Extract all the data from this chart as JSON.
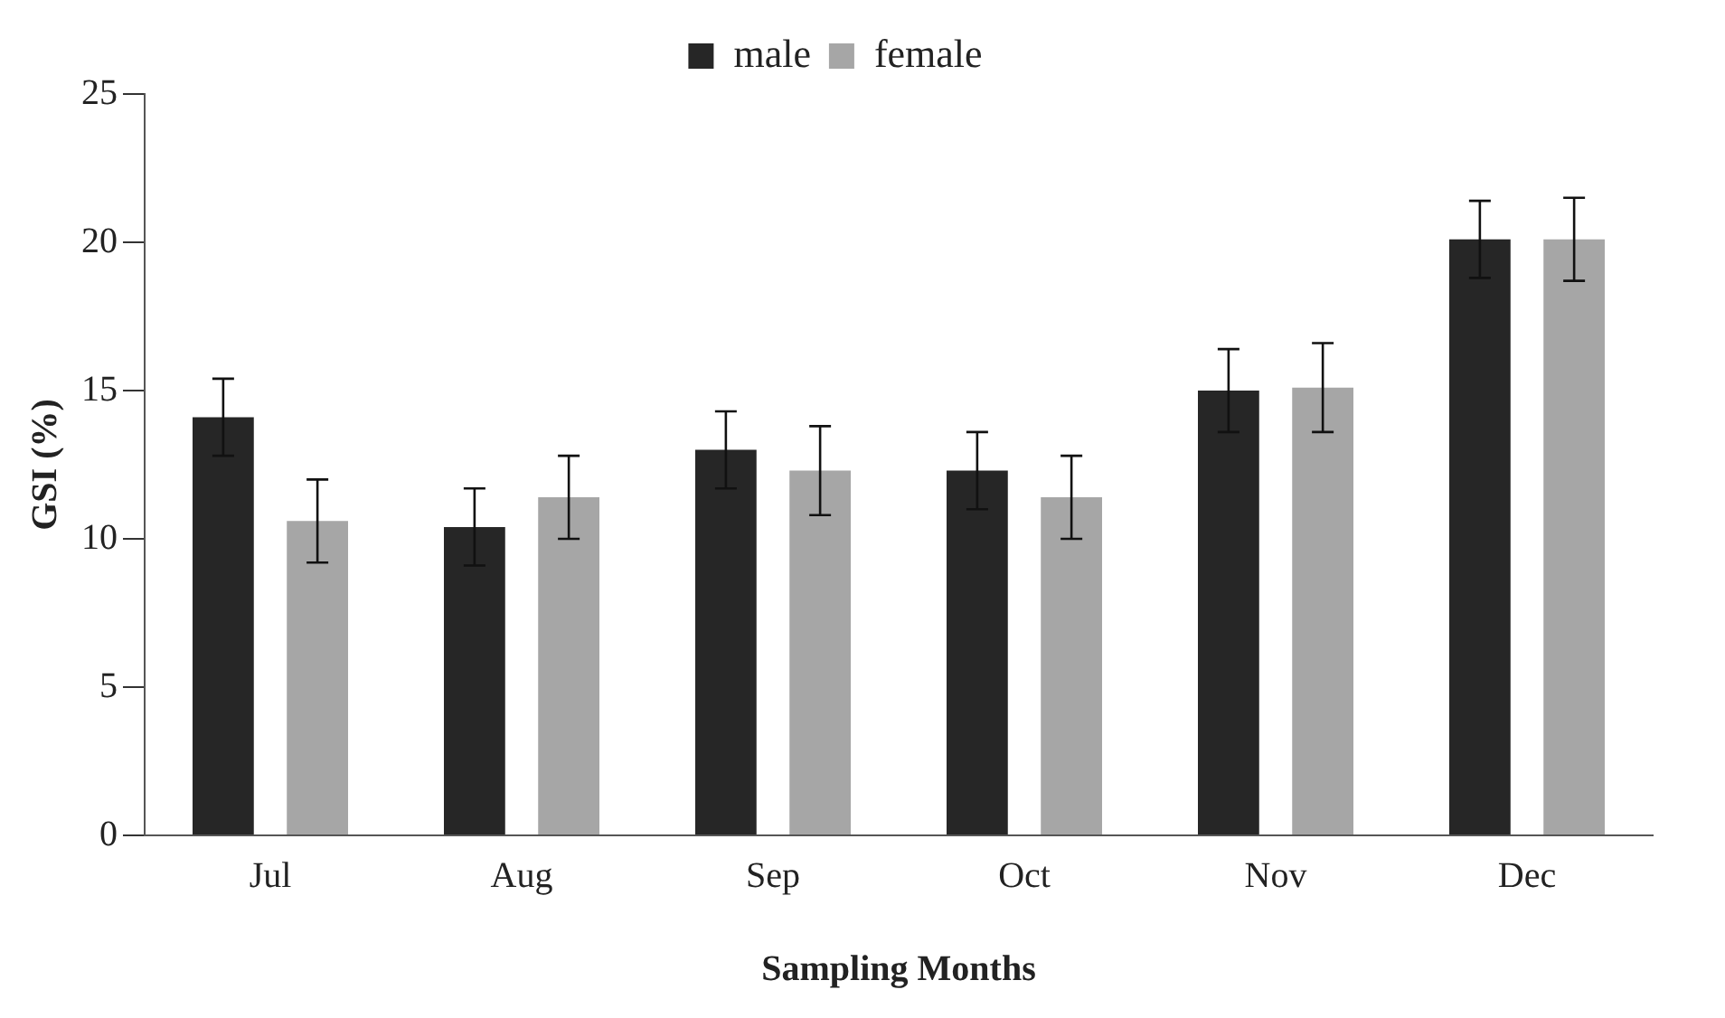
{
  "chart_data": {
    "type": "bar",
    "xlabel": "Sampling Months",
    "ylabel": "GSI (%)",
    "categories": [
      "Jul",
      "Aug",
      "Sep",
      "Oct",
      "Nov",
      "Dec"
    ],
    "series": [
      {
        "name": "male",
        "color": "#262626",
        "values": [
          14.1,
          10.4,
          13.0,
          12.3,
          15.0,
          20.1
        ],
        "errors": [
          1.3,
          1.3,
          1.3,
          1.3,
          1.4,
          1.3
        ]
      },
      {
        "name": "female",
        "color": "#a6a6a6",
        "values": [
          10.6,
          11.4,
          12.3,
          11.4,
          15.1,
          20.1
        ],
        "errors": [
          1.4,
          1.4,
          1.5,
          1.4,
          1.5,
          1.4
        ]
      }
    ],
    "ylim": [
      0,
      25
    ],
    "yticks": [
      0,
      5,
      10,
      15,
      20,
      25
    ],
    "grid": false,
    "legend": "top"
  }
}
